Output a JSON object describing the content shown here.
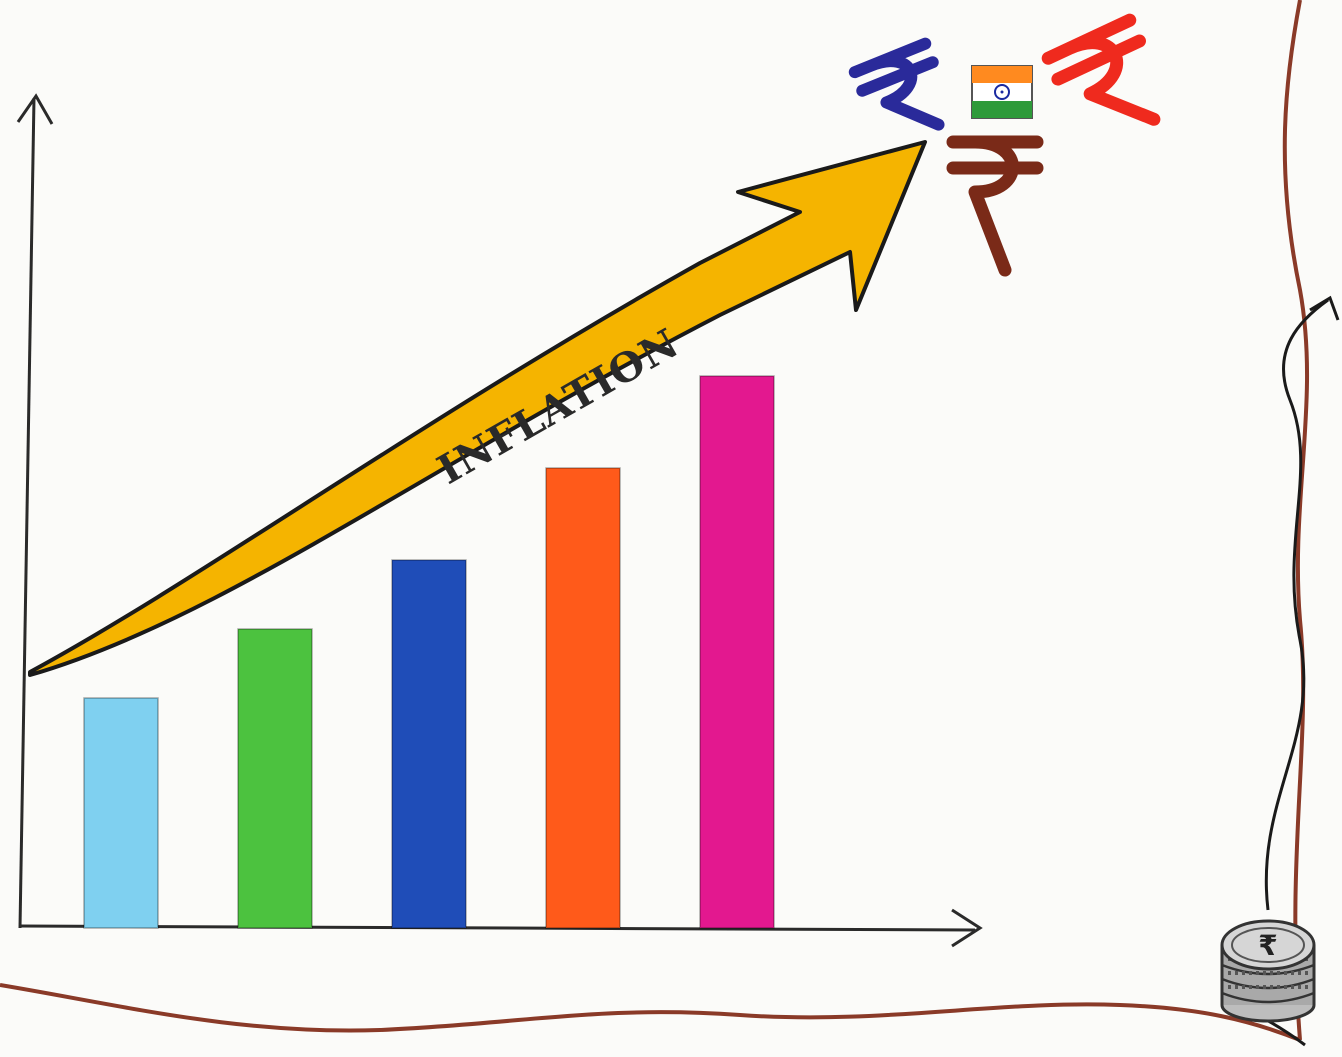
{
  "chart_data": {
    "type": "bar",
    "title": "",
    "xlabel": "",
    "ylabel": "",
    "values": [
      1,
      1.3,
      1.6,
      2.0,
      2.4
    ],
    "ylim": [
      0,
      3.6
    ],
    "colors": [
      "#7fd0f0",
      "#4cc23f",
      "#1f4db8",
      "#ff5a1a",
      "#e3188f"
    ],
    "grid": false,
    "legend": "none",
    "arrow": {
      "label": "INFLATION",
      "color": "#f5b400",
      "direction": "up-right"
    }
  },
  "decor": {
    "rupee_glyph": "₹",
    "rupee_colors": [
      "#2a2a9a",
      "#ef2a1e",
      "#7a2a18"
    ],
    "flag_colors": [
      "#ff8a1f",
      "#ffffff",
      "#2e9a3a",
      "#1a2aa0"
    ],
    "border_color": "#8a3a28",
    "coin_stack_icon": "coin-stack-icon"
  }
}
